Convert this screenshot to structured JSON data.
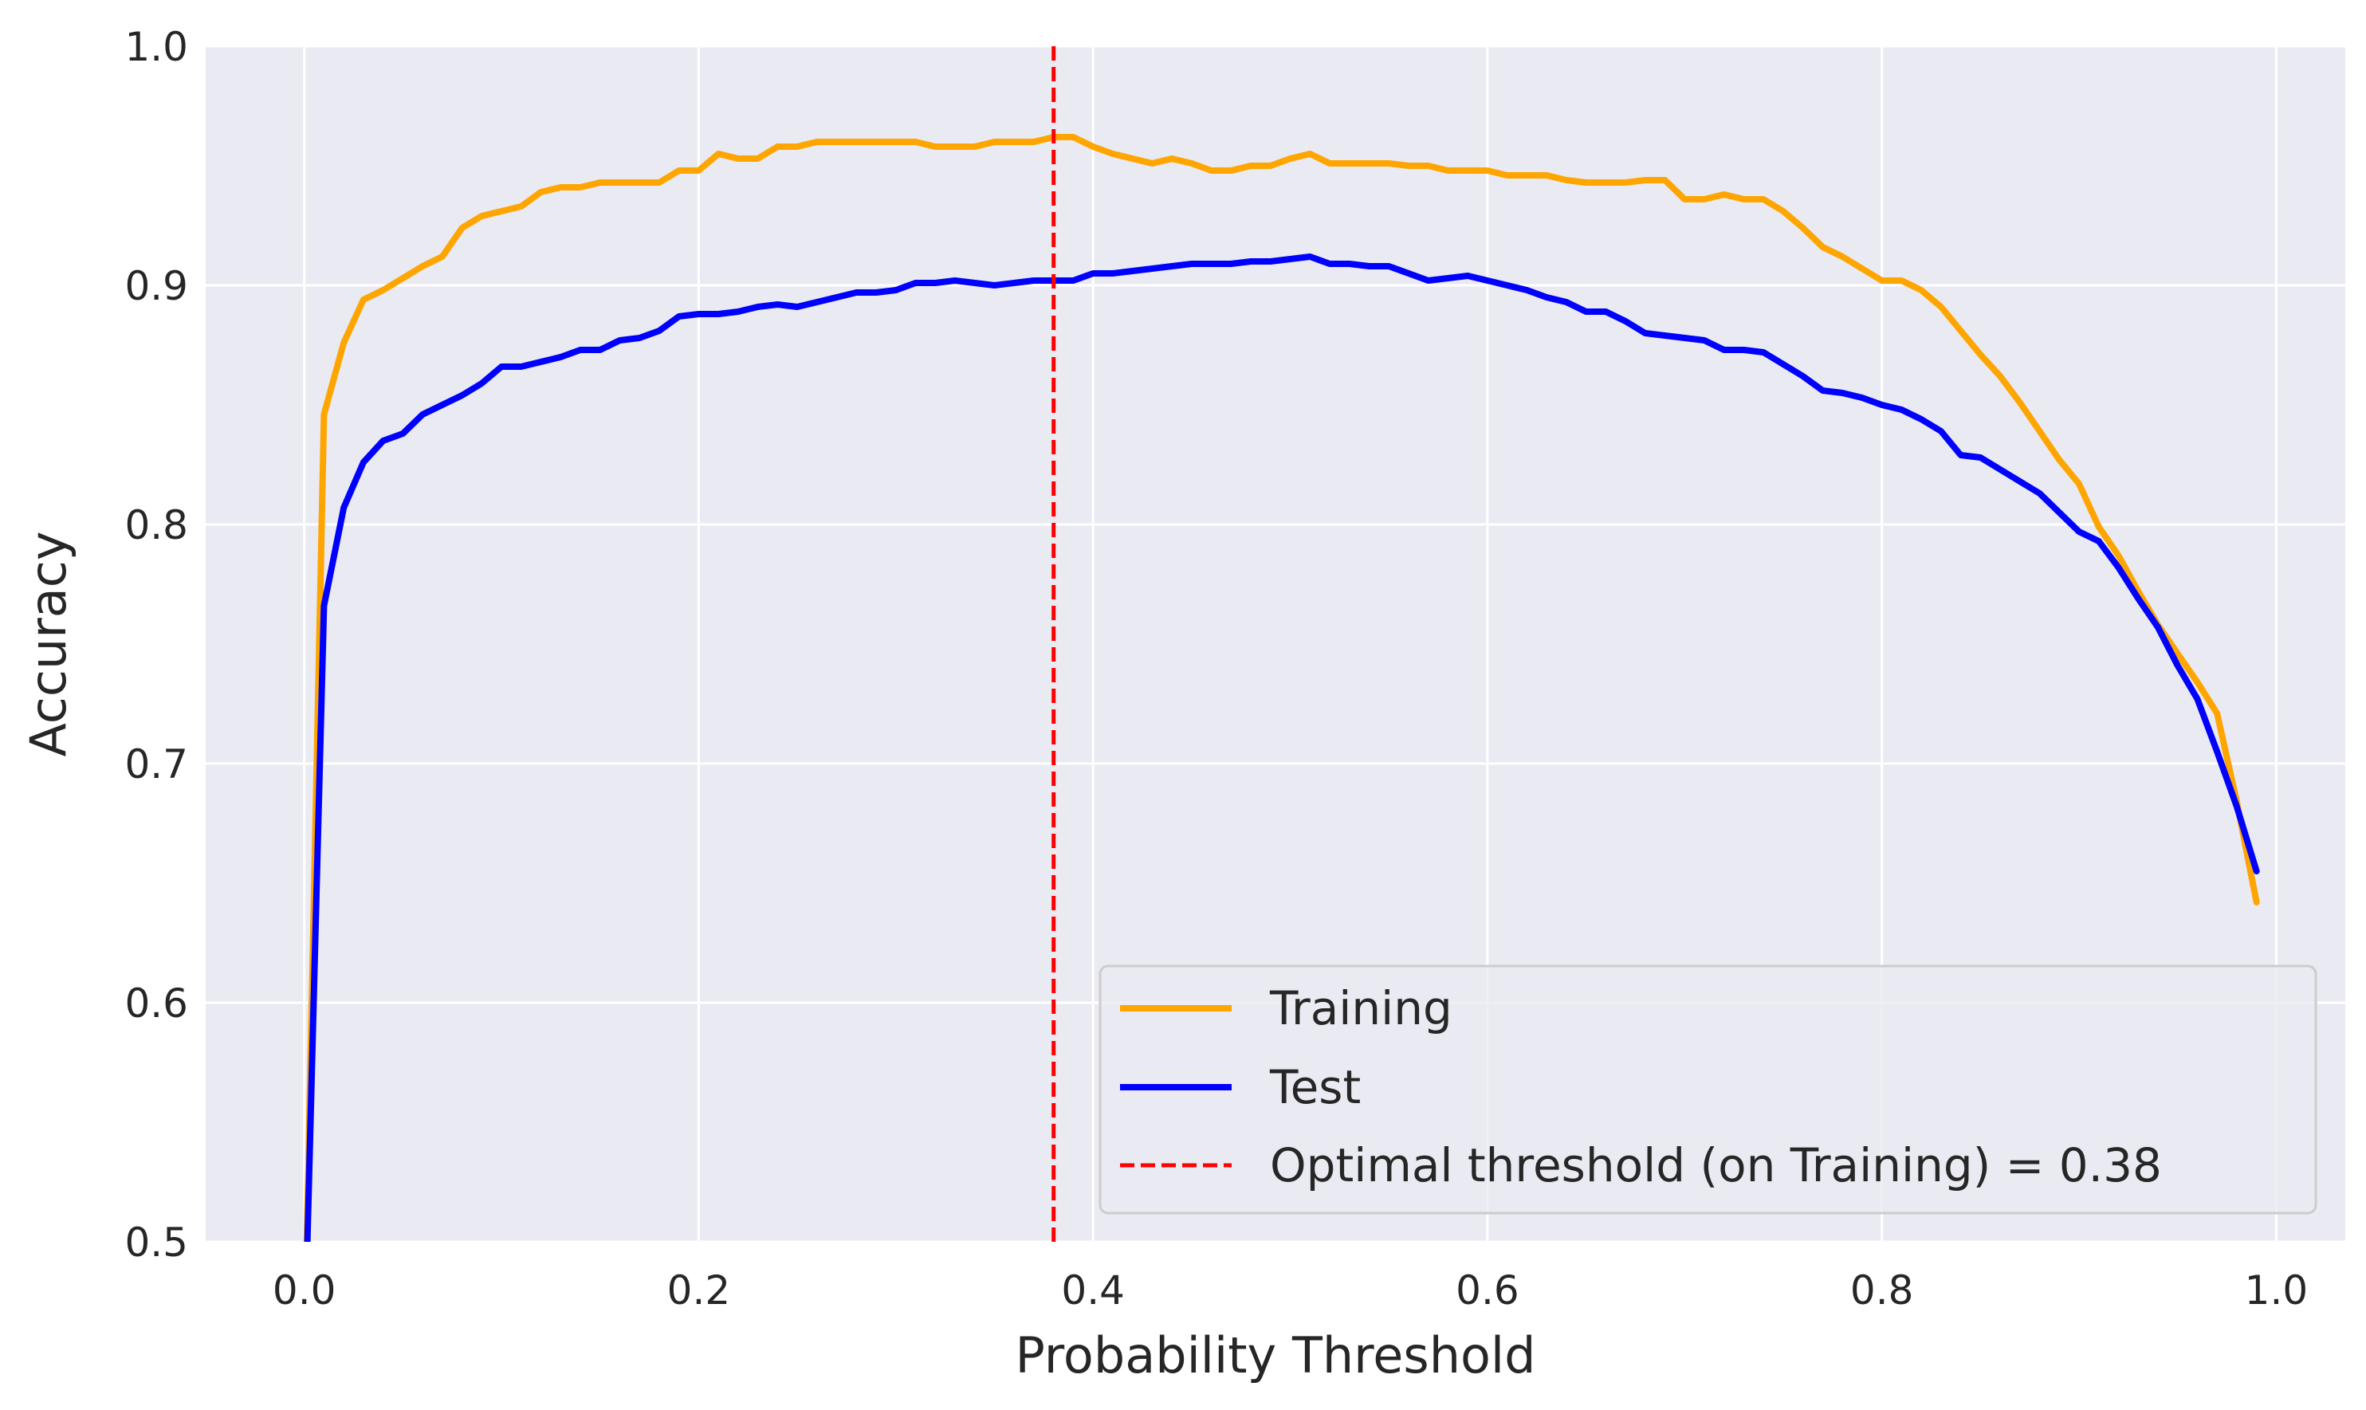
{
  "chart_data": {
    "type": "line",
    "title": "",
    "xlabel": "Probability Threshold",
    "ylabel": "Accuracy",
    "xlim": [
      -0.05,
      1.035
    ],
    "ylim": [
      0.5,
      1.0
    ],
    "xticks": [
      "0.0",
      "0.2",
      "0.4",
      "0.6",
      "0.8",
      "1.0"
    ],
    "yticks": [
      "0.5",
      "0.6",
      "0.7",
      "0.8",
      "0.9",
      "1.0"
    ],
    "grid": true,
    "legend_position": "lower-right",
    "x": [
      0.0,
      0.01,
      0.02,
      0.03,
      0.04,
      0.05,
      0.06,
      0.07,
      0.08,
      0.09,
      0.1,
      0.11,
      0.12,
      0.13,
      0.14,
      0.15,
      0.16,
      0.17,
      0.18,
      0.19,
      0.2,
      0.21,
      0.22,
      0.23,
      0.24,
      0.25,
      0.26,
      0.27,
      0.28,
      0.29,
      0.3,
      0.31,
      0.32,
      0.33,
      0.34,
      0.35,
      0.36,
      0.37,
      0.38,
      0.39,
      0.4,
      0.41,
      0.42,
      0.43,
      0.44,
      0.45,
      0.46,
      0.47,
      0.48,
      0.49,
      0.5,
      0.51,
      0.52,
      0.53,
      0.54,
      0.55,
      0.56,
      0.57,
      0.58,
      0.59,
      0.6,
      0.61,
      0.62,
      0.63,
      0.64,
      0.65,
      0.66,
      0.67,
      0.68,
      0.69,
      0.7,
      0.71,
      0.72,
      0.73,
      0.74,
      0.75,
      0.76,
      0.77,
      0.78,
      0.79,
      0.8,
      0.81,
      0.82,
      0.83,
      0.84,
      0.85,
      0.86,
      0.87,
      0.88,
      0.89,
      0.9,
      0.91,
      0.92,
      0.93,
      0.94,
      0.95,
      0.96,
      0.97,
      0.98,
      0.99
    ],
    "series": [
      {
        "name": "Training",
        "color": "#ffa500",
        "style": "solid",
        "values": [
          0.45,
          0.846,
          0.876,
          0.894,
          0.898,
          0.903,
          0.908,
          0.912,
          0.924,
          0.929,
          0.931,
          0.933,
          0.939,
          0.941,
          0.941,
          0.943,
          0.943,
          0.943,
          0.943,
          0.948,
          0.948,
          0.955,
          0.953,
          0.953,
          0.958,
          0.958,
          0.96,
          0.96,
          0.96,
          0.96,
          0.96,
          0.96,
          0.958,
          0.958,
          0.958,
          0.96,
          0.96,
          0.96,
          0.962,
          0.962,
          0.958,
          0.955,
          0.953,
          0.951,
          0.953,
          0.951,
          0.948,
          0.948,
          0.95,
          0.95,
          0.953,
          0.955,
          0.951,
          0.951,
          0.951,
          0.951,
          0.95,
          0.95,
          0.948,
          0.948,
          0.948,
          0.946,
          0.946,
          0.946,
          0.944,
          0.943,
          0.943,
          0.943,
          0.944,
          0.944,
          0.936,
          0.936,
          0.938,
          0.936,
          0.936,
          0.931,
          0.924,
          0.916,
          0.912,
          0.907,
          0.902,
          0.902,
          0.898,
          0.891,
          0.881,
          0.871,
          0.862,
          0.851,
          0.839,
          0.827,
          0.817,
          0.799,
          0.787,
          0.772,
          0.758,
          0.746,
          0.734,
          0.721,
          0.684,
          0.642
        ]
      },
      {
        "name": "Test",
        "color": "#0000ff",
        "style": "solid",
        "values": [
          0.45,
          0.766,
          0.807,
          0.826,
          0.835,
          0.838,
          0.846,
          0.85,
          0.854,
          0.859,
          0.866,
          0.866,
          0.868,
          0.87,
          0.873,
          0.873,
          0.877,
          0.878,
          0.881,
          0.887,
          0.888,
          0.888,
          0.889,
          0.891,
          0.892,
          0.891,
          0.893,
          0.895,
          0.897,
          0.897,
          0.898,
          0.901,
          0.901,
          0.902,
          0.901,
          0.9,
          0.901,
          0.902,
          0.902,
          0.902,
          0.905,
          0.905,
          0.906,
          0.907,
          0.908,
          0.909,
          0.909,
          0.909,
          0.91,
          0.91,
          0.911,
          0.912,
          0.909,
          0.909,
          0.908,
          0.908,
          0.905,
          0.902,
          0.903,
          0.904,
          0.902,
          0.9,
          0.898,
          0.895,
          0.893,
          0.889,
          0.889,
          0.885,
          0.88,
          0.879,
          0.878,
          0.877,
          0.873,
          0.873,
          0.872,
          0.867,
          0.862,
          0.856,
          0.855,
          0.853,
          0.85,
          0.848,
          0.844,
          0.839,
          0.829,
          0.828,
          0.823,
          0.818,
          0.813,
          0.805,
          0.797,
          0.793,
          0.782,
          0.769,
          0.757,
          0.741,
          0.727,
          0.705,
          0.682,
          0.655
        ]
      }
    ],
    "reference_line": {
      "label": "Optimal threshold (on Training) = 0.38",
      "x": 0.38,
      "color": "#ff0000",
      "style": "dashed"
    }
  }
}
